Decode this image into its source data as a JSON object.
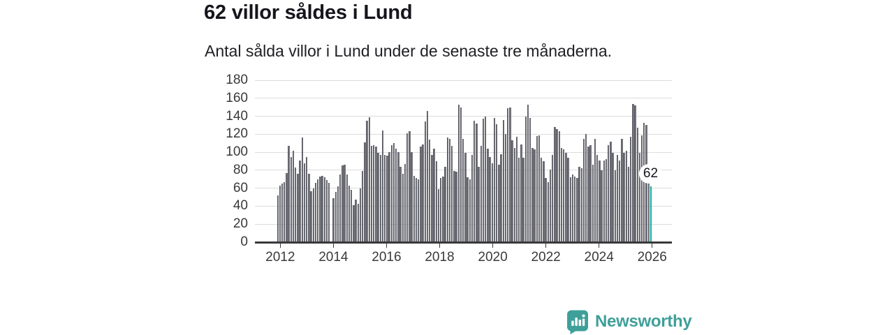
{
  "header": {
    "title": "62 villor såldes i Lund",
    "subtitle": "Antal sålda villor i Lund under de senaste tre månaderna."
  },
  "chart_data": {
    "type": "bar",
    "title": "62 villor såldes i Lund",
    "subtitle": "Antal sålda villor i Lund under de senaste tre månaderna.",
    "xlabel": "",
    "ylabel": "",
    "ylim": [
      0,
      180
    ],
    "y_ticks": [
      0,
      20,
      40,
      60,
      80,
      100,
      120,
      140,
      160,
      180
    ],
    "x_tick_labels": [
      "2012",
      "2014",
      "2016",
      "2018",
      "2020",
      "2022",
      "2024",
      "2026"
    ],
    "x_start": "2012-01",
    "x_end": "2025-12",
    "grid": true,
    "legend": false,
    "bar_color": "#73737b",
    "highlight_color": "#16aca3",
    "highlight": {
      "index": 167,
      "value": 62,
      "label": "62"
    },
    "values": [
      52,
      63,
      65,
      67,
      77,
      107,
      95,
      102,
      83,
      76,
      91,
      116,
      88,
      95,
      76,
      57,
      60,
      66,
      70,
      73,
      74,
      72,
      69,
      66,
      0,
      49,
      56,
      62,
      75,
      85,
      86,
      75,
      63,
      58,
      41,
      47,
      43,
      60,
      79,
      111,
      135,
      139,
      107,
      108,
      106,
      99,
      97,
      124,
      97,
      96,
      100,
      108,
      110,
      104,
      100,
      84,
      76,
      87,
      121,
      123,
      100,
      74,
      71,
      70,
      106,
      109,
      134,
      146,
      114,
      97,
      104,
      90,
      59,
      71,
      73,
      84,
      116,
      115,
      107,
      79,
      78,
      153,
      150,
      115,
      99,
      72,
      70,
      97,
      135,
      132,
      84,
      107,
      137,
      140,
      104,
      95,
      88,
      138,
      131,
      86,
      98,
      136,
      120,
      149,
      150,
      113,
      105,
      117,
      94,
      109,
      94,
      140,
      153,
      138,
      105,
      103,
      118,
      119,
      94,
      90,
      71,
      67,
      81,
      97,
      128,
      126,
      123,
      105,
      103,
      99,
      94,
      72,
      75,
      73,
      71,
      84,
      82,
      115,
      120,
      106,
      108,
      86,
      115,
      97,
      91,
      80,
      91,
      92,
      108,
      112,
      99,
      80,
      97,
      91,
      115,
      99,
      102,
      84,
      117,
      154,
      152,
      127,
      99,
      119,
      133,
      130,
      82,
      62
    ]
  },
  "annotation": {
    "label": "62"
  },
  "branding": {
    "logo_text": "Newsworthy",
    "color": "#3f9f99"
  }
}
